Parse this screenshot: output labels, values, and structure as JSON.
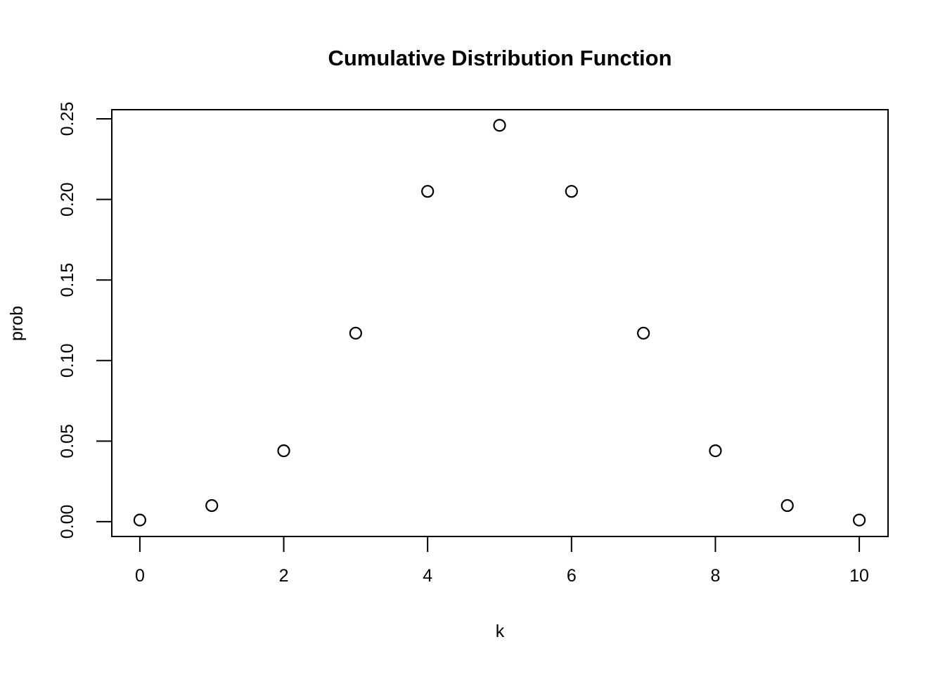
{
  "page": {
    "background_color": "#ffffff",
    "foreground_color": "#000000"
  },
  "chart_data": {
    "type": "scatter",
    "title": "Cumulative Distribution Function",
    "xlabel": "k",
    "ylabel": "prob",
    "x": [
      0,
      1,
      2,
      3,
      4,
      5,
      6,
      7,
      8,
      9,
      10
    ],
    "y": [
      0.001,
      0.01,
      0.044,
      0.117,
      0.205,
      0.246,
      0.205,
      0.117,
      0.044,
      0.01,
      0.001
    ],
    "xticks": {
      "values": [
        0,
        2,
        4,
        6,
        8,
        10
      ],
      "labels": [
        "0",
        "2",
        "4",
        "6",
        "8",
        "10"
      ]
    },
    "yticks": {
      "values": [
        0.0,
        0.05,
        0.1,
        0.15,
        0.2,
        0.25
      ],
      "labels": [
        "0.00",
        "0.05",
        "0.10",
        "0.15",
        "0.20",
        "0.25"
      ]
    },
    "xlim": [
      -0.39,
      10.4
    ],
    "ylim": [
      -0.0092,
      0.2557
    ],
    "marker": "open-circle",
    "marker_color": "#000000",
    "axis_color": "#000000",
    "grid": false,
    "legend": null
  }
}
